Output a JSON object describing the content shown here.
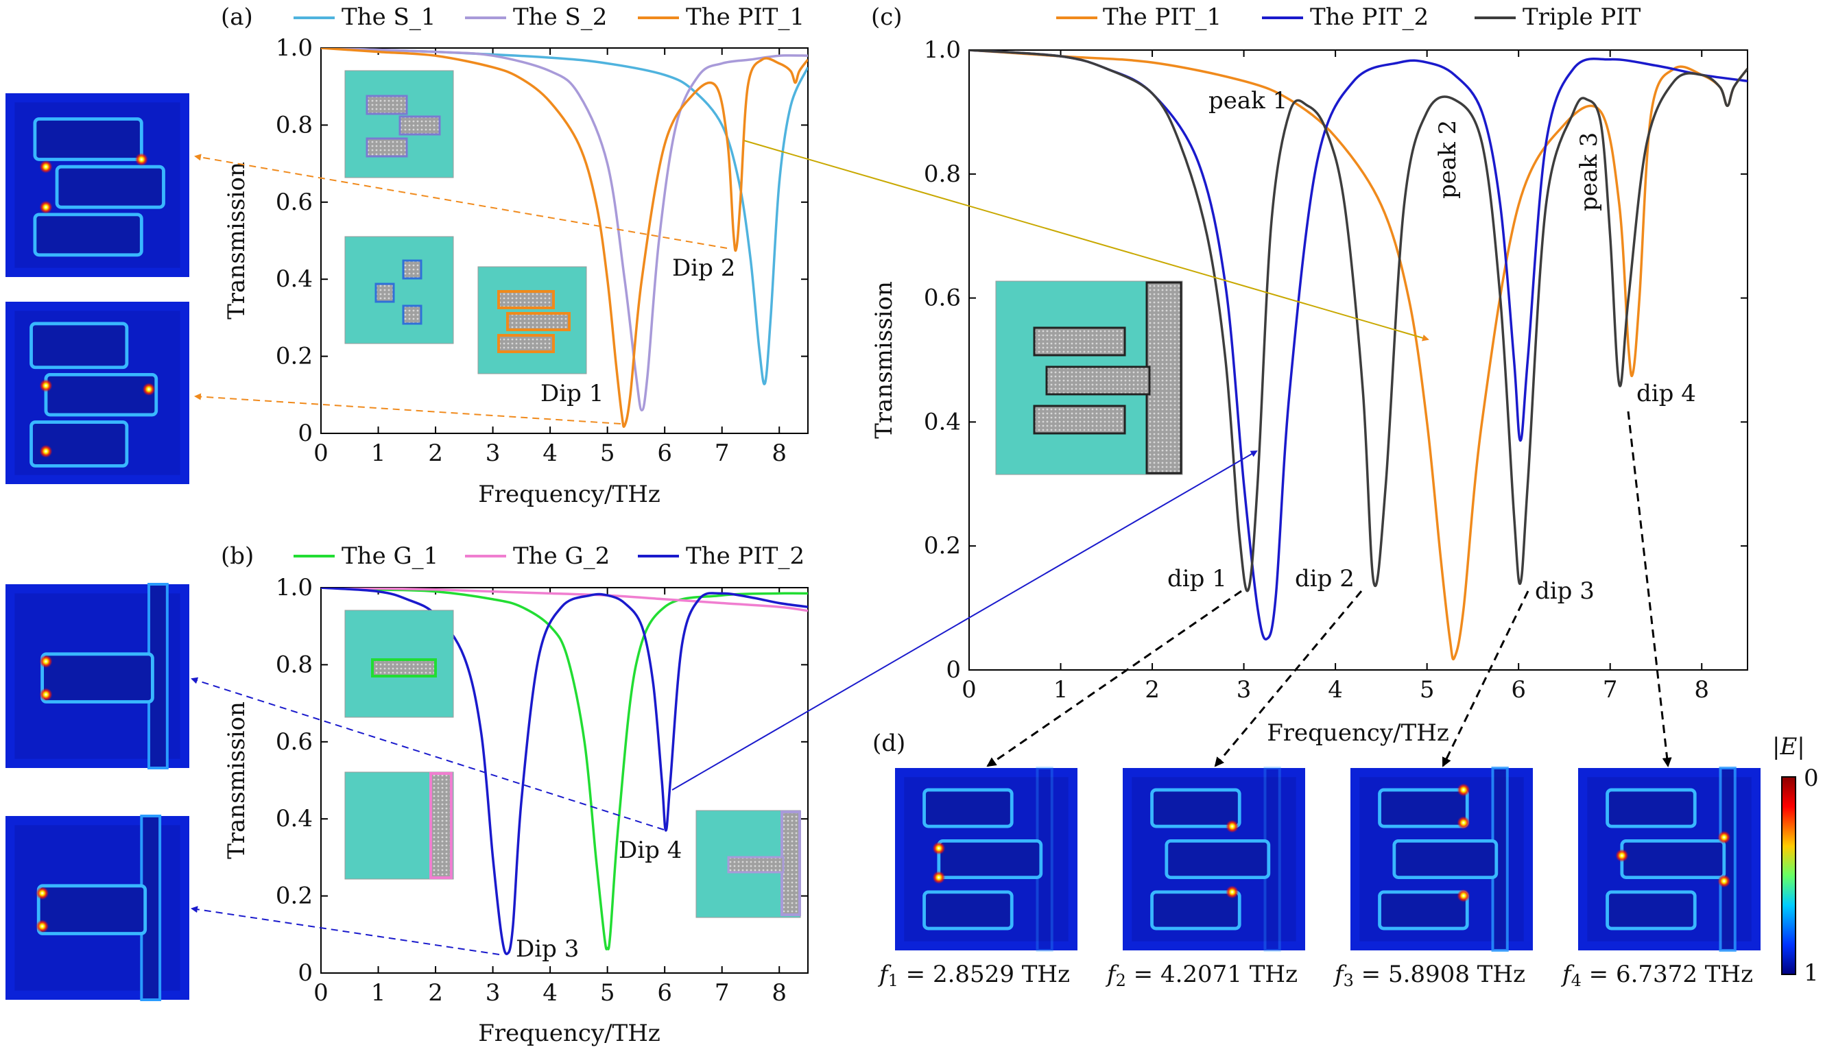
{
  "panels": {
    "a": {
      "tag": "(a)",
      "legend": [
        "The S_1",
        "The S_2",
        "The PIT_1"
      ],
      "annotations": [
        "Dip 1",
        "Dip 2"
      ]
    },
    "b": {
      "tag": "(b)",
      "legend": [
        "The G_1",
        "The G_2",
        "The PIT_2"
      ],
      "annotations": [
        "Dip 3",
        "Dip 4"
      ]
    },
    "c": {
      "tag": "(c)",
      "legend": [
        "The PIT_1",
        "The PIT_2",
        "Triple PIT"
      ],
      "annotations": [
        "peak 1",
        "peak 2",
        "peak 3",
        "dip 1",
        "dip 2",
        "dip 3",
        "dip 4"
      ]
    },
    "d": {
      "tag": "(d)",
      "colorbar_title": "|E|",
      "colorbar_top": "0",
      "colorbar_bottom": "1",
      "captions": [
        {
          "var": "f",
          "sub": "1",
          "text": " = 2.8529 THz"
        },
        {
          "var": "f",
          "sub": "2",
          "text": " = 4.2071 THz"
        },
        {
          "var": "f",
          "sub": "3",
          "text": " = 5.8908 THz"
        },
        {
          "var": "f",
          "sub": "4",
          "text": " = 6.7372 THz"
        }
      ]
    }
  },
  "colors": {
    "S_1": "#4fb3de",
    "S_2": "#a89ad9",
    "PIT_1": "#f08a1c",
    "G_1": "#22dd33",
    "G_2": "#f07ed0",
    "PIT_2": "#1a1acc",
    "Triple": "#3d3d3d",
    "metasurface": "#55cec0"
  },
  "chart_data": [
    {
      "type": "line",
      "panel": "a",
      "xlabel": "Frequency/THz",
      "ylabel": "Transmission",
      "xlim": [
        0,
        8.5
      ],
      "ylim": [
        0,
        1.0
      ],
      "xticks": [
        0,
        1,
        2,
        3,
        4,
        5,
        6,
        7,
        8
      ],
      "yticks": [
        0,
        0.2,
        0.4,
        0.6,
        0.8,
        1.0
      ],
      "series": [
        {
          "name": "The S_1",
          "x": [
            0,
            2,
            4,
            5,
            6,
            6.5,
            7,
            7.3,
            7.5,
            7.65,
            7.75,
            7.85,
            8,
            8.2,
            8.5
          ],
          "y": [
            1.0,
            0.99,
            0.975,
            0.96,
            0.93,
            0.89,
            0.8,
            0.65,
            0.45,
            0.22,
            0.13,
            0.3,
            0.65,
            0.85,
            0.95
          ]
        },
        {
          "name": "The S_2",
          "x": [
            0,
            2,
            3,
            4,
            4.5,
            5,
            5.3,
            5.5,
            5.6,
            5.7,
            5.9,
            6.2,
            6.6,
            7,
            7.5,
            8,
            8.5
          ],
          "y": [
            1.0,
            0.99,
            0.98,
            0.94,
            0.88,
            0.7,
            0.4,
            0.15,
            0.06,
            0.15,
            0.5,
            0.8,
            0.93,
            0.96,
            0.97,
            0.98,
            0.98
          ]
        },
        {
          "name": "The PIT_1",
          "x": [
            0,
            1,
            2,
            3,
            3.5,
            4,
            4.5,
            4.8,
            5,
            5.15,
            5.25,
            5.3,
            5.4,
            5.6,
            6,
            6.5,
            6.9,
            7.1,
            7.2,
            7.25,
            7.32,
            7.45,
            7.7,
            8,
            8.2,
            8.28,
            8.35,
            8.5
          ],
          "y": [
            1.0,
            0.99,
            0.98,
            0.95,
            0.92,
            0.86,
            0.75,
            0.6,
            0.4,
            0.18,
            0.05,
            0.02,
            0.1,
            0.4,
            0.75,
            0.88,
            0.9,
            0.75,
            0.52,
            0.48,
            0.6,
            0.9,
            0.97,
            0.96,
            0.94,
            0.91,
            0.94,
            0.97
          ]
        }
      ]
    },
    {
      "type": "line",
      "panel": "b",
      "xlabel": "Frequency/THz",
      "ylabel": "Transmission",
      "xlim": [
        0,
        8.5
      ],
      "ylim": [
        0,
        1.0
      ],
      "xticks": [
        0,
        1,
        2,
        3,
        4,
        5,
        6,
        7,
        8
      ],
      "yticks": [
        0,
        0.2,
        0.4,
        0.6,
        0.8,
        1.0
      ],
      "series": [
        {
          "name": "The G_1",
          "x": [
            0,
            1,
            2,
            3,
            3.5,
            4,
            4.3,
            4.6,
            4.8,
            4.95,
            5.0,
            5.05,
            5.2,
            5.5,
            6,
            7,
            8,
            8.5
          ],
          "y": [
            1.0,
            0.995,
            0.99,
            0.97,
            0.95,
            0.9,
            0.82,
            0.6,
            0.3,
            0.09,
            0.065,
            0.1,
            0.4,
            0.8,
            0.95,
            0.98,
            0.985,
            0.985
          ]
        },
        {
          "name": "The G_2",
          "x": [
            0,
            1,
            2,
            3,
            4,
            5,
            6,
            7,
            8,
            8.5
          ],
          "y": [
            1.0,
            0.998,
            0.995,
            0.99,
            0.985,
            0.98,
            0.97,
            0.96,
            0.95,
            0.94
          ]
        },
        {
          "name": "The PIT_2",
          "x": [
            0,
            1,
            1.5,
            2,
            2.5,
            2.8,
            3.0,
            3.15,
            3.25,
            3.35,
            3.5,
            3.8,
            4.2,
            4.7,
            5.0,
            5.3,
            5.6,
            5.8,
            5.95,
            6.02,
            6.1,
            6.3,
            6.6,
            7,
            7.5,
            8,
            8.5
          ],
          "y": [
            1.0,
            0.99,
            0.97,
            0.93,
            0.82,
            0.62,
            0.3,
            0.1,
            0.05,
            0.12,
            0.45,
            0.82,
            0.95,
            0.98,
            0.98,
            0.96,
            0.9,
            0.75,
            0.5,
            0.37,
            0.5,
            0.85,
            0.97,
            0.985,
            0.975,
            0.96,
            0.95
          ]
        }
      ]
    },
    {
      "type": "line",
      "panel": "c",
      "xlabel": "Frequency/THz",
      "ylabel": "Transmission",
      "xlim": [
        0,
        8.5
      ],
      "ylim": [
        0,
        1.0
      ],
      "xticks": [
        0,
        1,
        2,
        3,
        4,
        5,
        6,
        7,
        8
      ],
      "yticks": [
        0,
        0.2,
        0.4,
        0.6,
        0.8,
        1.0
      ],
      "series": [
        {
          "name": "The PIT_1",
          "x": [
            0,
            1,
            2,
            3,
            3.5,
            4,
            4.5,
            4.8,
            5,
            5.15,
            5.25,
            5.3,
            5.4,
            5.6,
            6,
            6.5,
            6.9,
            7.1,
            7.2,
            7.25,
            7.32,
            7.45,
            7.7,
            8,
            8.2,
            8.28,
            8.35,
            8.5
          ],
          "y": [
            1.0,
            0.99,
            0.98,
            0.95,
            0.92,
            0.86,
            0.75,
            0.6,
            0.4,
            0.18,
            0.05,
            0.02,
            0.1,
            0.4,
            0.75,
            0.88,
            0.9,
            0.75,
            0.52,
            0.48,
            0.6,
            0.9,
            0.97,
            0.96,
            0.94,
            0.91,
            0.94,
            0.97
          ]
        },
        {
          "name": "The PIT_2",
          "x": [
            0,
            1,
            1.5,
            2,
            2.5,
            2.8,
            3.0,
            3.15,
            3.25,
            3.35,
            3.5,
            3.8,
            4.2,
            4.7,
            5.0,
            5.3,
            5.6,
            5.8,
            5.95,
            6.02,
            6.1,
            6.3,
            6.6,
            7,
            7.5,
            8,
            8.5
          ],
          "y": [
            1.0,
            0.99,
            0.97,
            0.93,
            0.82,
            0.62,
            0.3,
            0.1,
            0.05,
            0.12,
            0.45,
            0.82,
            0.95,
            0.98,
            0.98,
            0.96,
            0.9,
            0.75,
            0.5,
            0.37,
            0.5,
            0.85,
            0.97,
            0.985,
            0.975,
            0.96,
            0.95
          ]
        },
        {
          "name": "Triple PIT",
          "x": [
            0,
            1,
            1.5,
            2,
            2.3,
            2.6,
            2.8,
            2.95,
            3.05,
            3.15,
            3.3,
            3.5,
            3.7,
            3.9,
            4.1,
            4.3,
            4.42,
            4.55,
            4.75,
            5.0,
            5.3,
            5.6,
            5.8,
            5.95,
            6.02,
            6.1,
            6.3,
            6.6,
            6.75,
            6.9,
            7.0,
            7.1,
            7.2,
            7.4,
            7.7,
            8,
            8.2,
            8.28,
            8.35,
            8.5
          ],
          "y": [
            1.0,
            0.99,
            0.97,
            0.93,
            0.85,
            0.7,
            0.5,
            0.22,
            0.13,
            0.3,
            0.72,
            0.9,
            0.91,
            0.87,
            0.75,
            0.45,
            0.14,
            0.3,
            0.75,
            0.9,
            0.92,
            0.85,
            0.6,
            0.25,
            0.14,
            0.3,
            0.75,
            0.9,
            0.92,
            0.88,
            0.7,
            0.46,
            0.6,
            0.85,
            0.95,
            0.96,
            0.94,
            0.91,
            0.94,
            0.97
          ]
        }
      ]
    }
  ]
}
